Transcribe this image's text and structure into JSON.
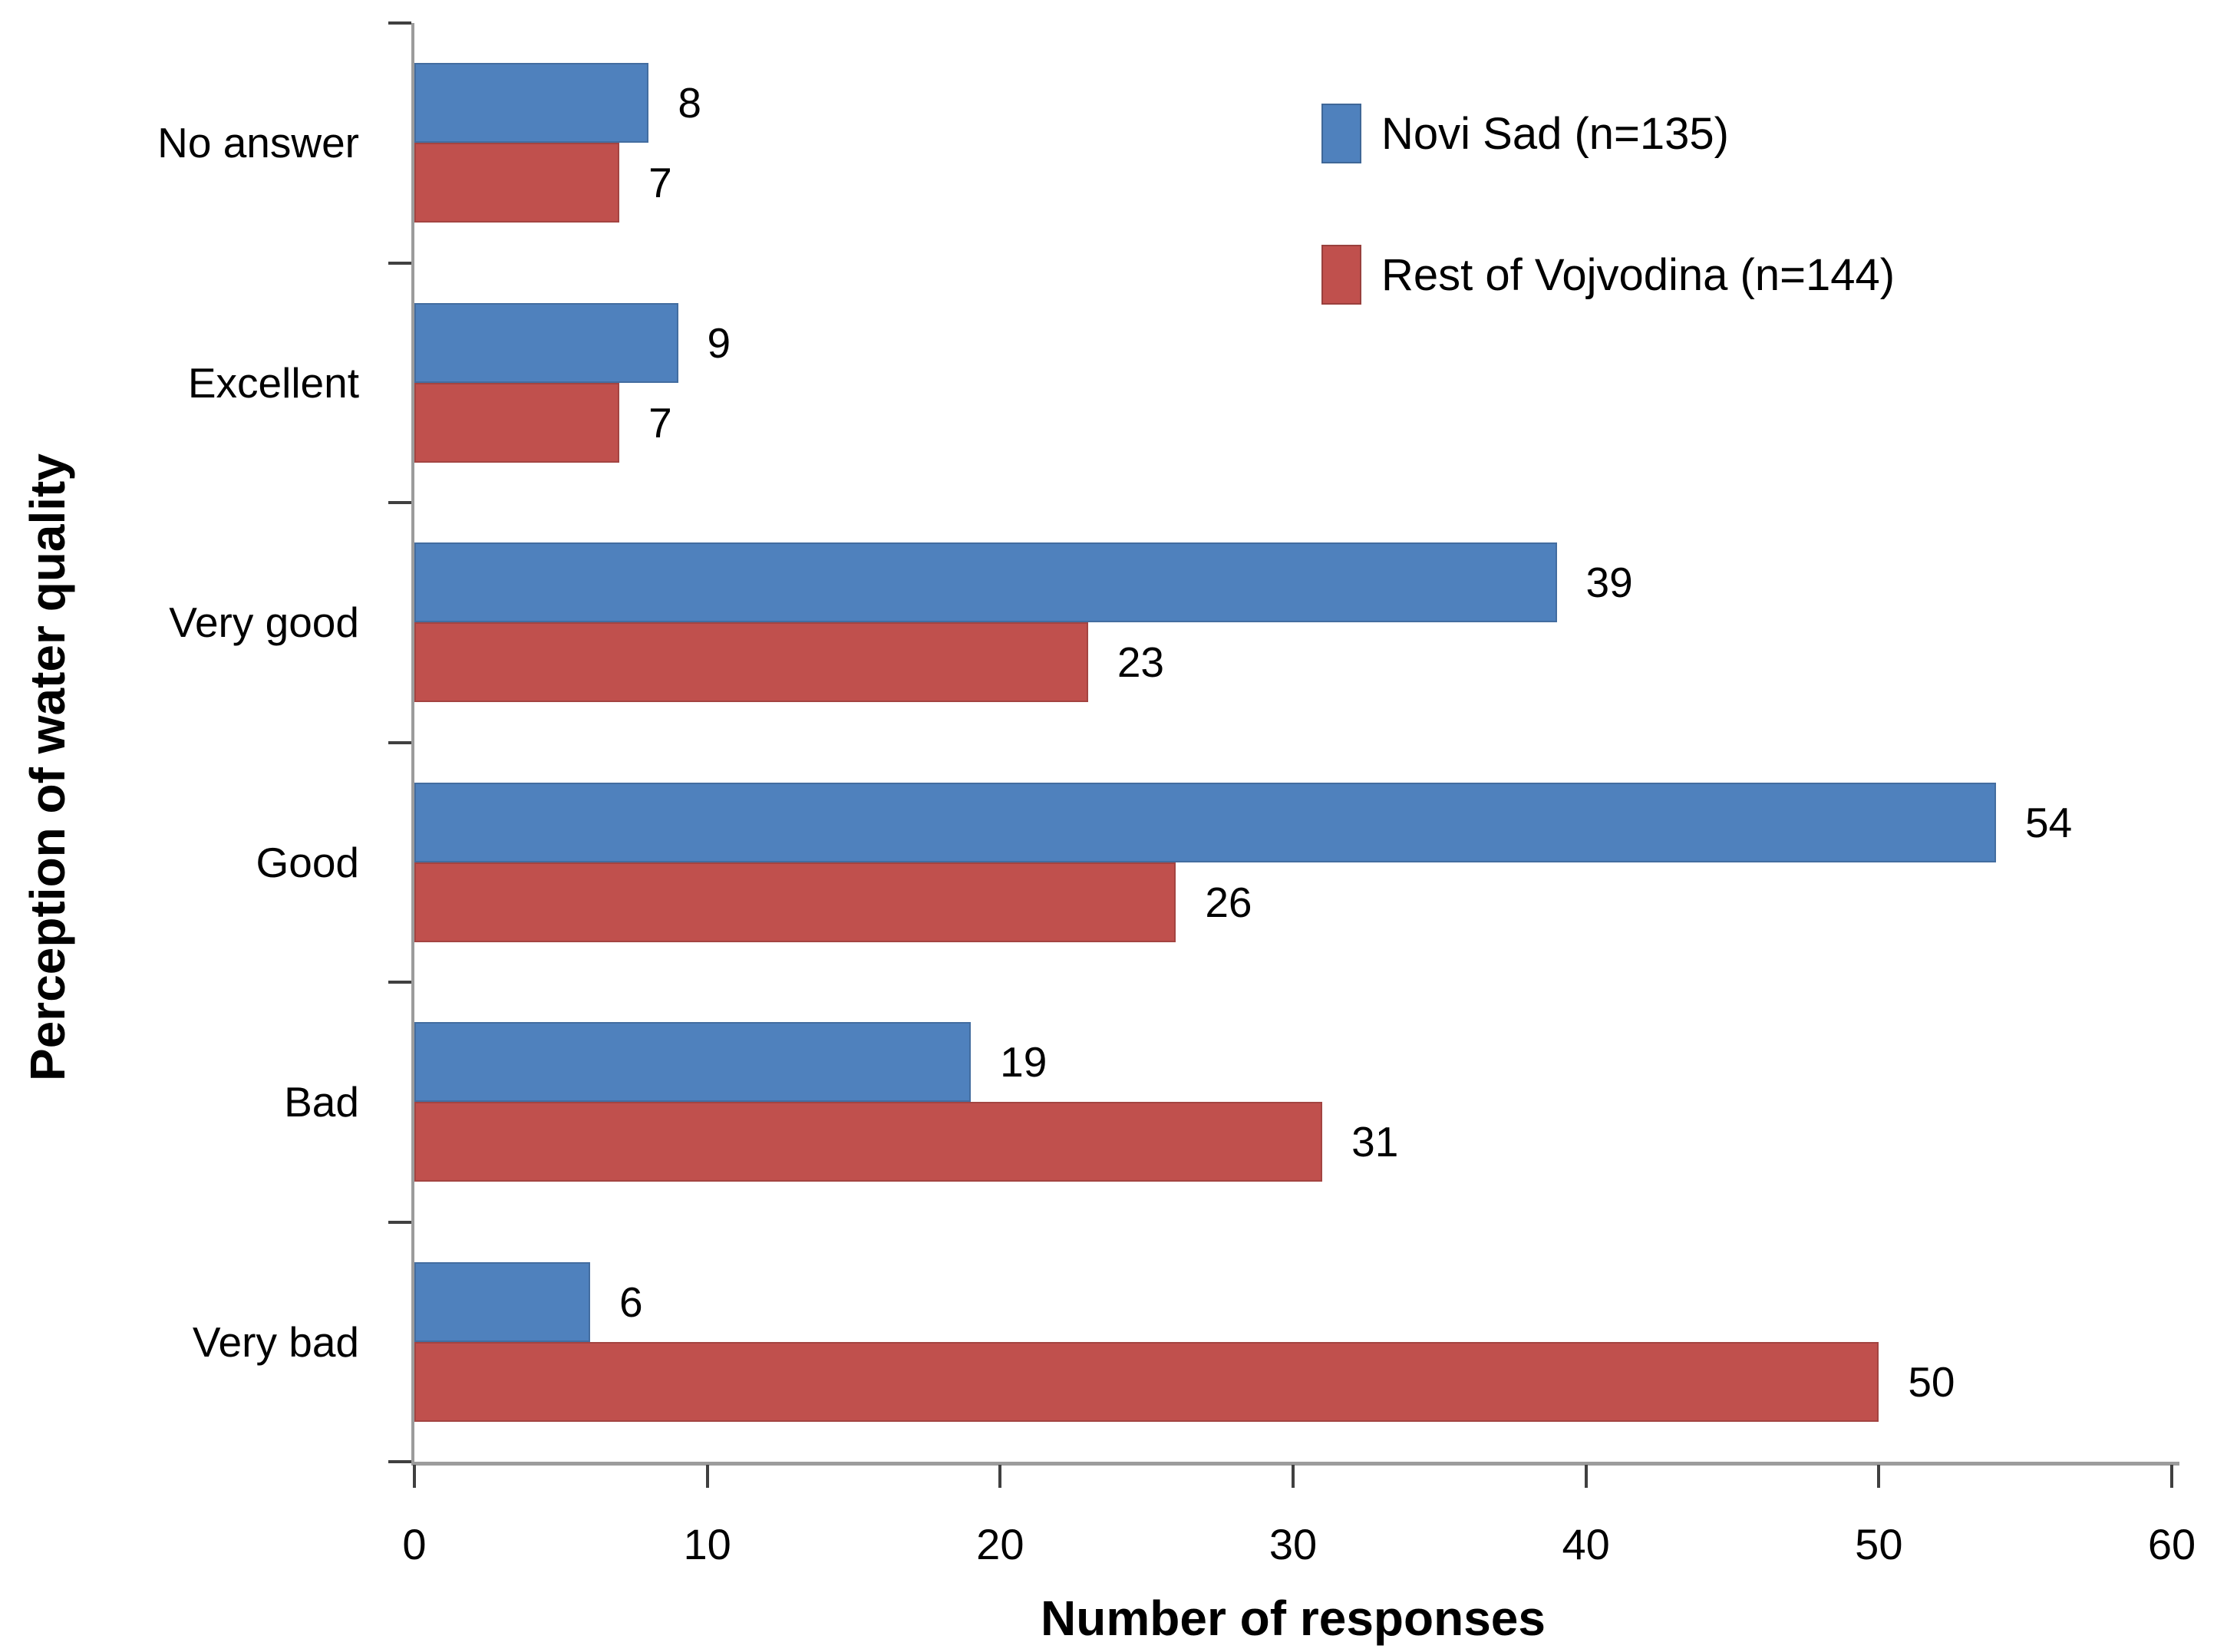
{
  "chart_data": {
    "type": "bar",
    "orientation": "horizontal",
    "categories": [
      "No answer",
      "Excellent",
      "Very good",
      "Good",
      "Bad",
      "Very bad"
    ],
    "series": [
      {
        "name": "Novi Sad (n=135)",
        "color": "#4F81BD",
        "values": [
          8,
          9,
          39,
          54,
          19,
          6
        ]
      },
      {
        "name": "Rest of Vojvodina (n=144)",
        "color": "#C0504D",
        "values": [
          7,
          7,
          23,
          26,
          31,
          50
        ]
      }
    ],
    "title": "",
    "xlabel": "Number of responses",
    "ylabel": "Perception of water quality",
    "xlim": [
      0,
      60
    ],
    "xticks": [
      0,
      10,
      20,
      30,
      40,
      50,
      60
    ],
    "grid": false,
    "data_labels": true,
    "legend_position": "upper-right",
    "axis_line_color": "#9C9C9C",
    "tick_color": "#404040",
    "text_color": "#000000",
    "background_color": "#FFFFFF"
  }
}
